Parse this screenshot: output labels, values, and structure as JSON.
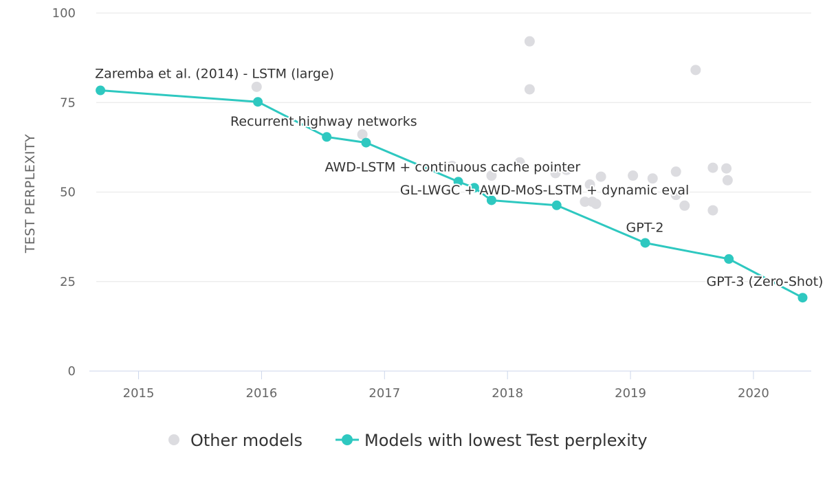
{
  "chart_data": {
    "type": "scatter",
    "xlabel": "",
    "ylabel": "TEST PERPLEXITY",
    "xlim": [
      2014.6,
      2020.47
    ],
    "ylim": [
      0,
      100
    ],
    "x_ticks": [
      2015,
      2016,
      2017,
      2018,
      2019,
      2020
    ],
    "y_ticks": [
      0,
      25,
      50,
      75,
      100
    ],
    "grid": "horizontal",
    "legend_position": "bottom",
    "colors": {
      "best": "#2ec8c0",
      "other": "#dcdce0"
    },
    "series": [
      {
        "name": "Other models",
        "kind": "scatter",
        "points": [
          [
            2015.96,
            79.4
          ],
          [
            2016.82,
            66.1
          ],
          [
            2017.55,
            57.3
          ],
          [
            2017.87,
            54.6
          ],
          [
            2018.1,
            58.3
          ],
          [
            2018.18,
            92.1
          ],
          [
            2018.18,
            78.7
          ],
          [
            2018.39,
            55.3
          ],
          [
            2018.48,
            56.2
          ],
          [
            2018.63,
            47.3
          ],
          [
            2018.67,
            52.1
          ],
          [
            2018.69,
            47.3
          ],
          [
            2018.72,
            46.7
          ],
          [
            2018.76,
            54.3
          ],
          [
            2019.02,
            54.6
          ],
          [
            2019.18,
            53.8
          ],
          [
            2019.37,
            49.2
          ],
          [
            2019.37,
            55.7
          ],
          [
            2019.44,
            46.2
          ],
          [
            2019.53,
            84.1
          ],
          [
            2019.67,
            56.8
          ],
          [
            2019.67,
            44.9
          ],
          [
            2019.78,
            56.6
          ],
          [
            2019.79,
            53.3
          ]
        ]
      },
      {
        "name": "Models with lowest Test perplexity",
        "kind": "line",
        "points": [
          [
            2014.69,
            78.4
          ],
          [
            2015.97,
            75.2
          ],
          [
            2016.53,
            65.4
          ],
          [
            2016.85,
            63.8
          ],
          [
            2017.6,
            52.9
          ],
          [
            2017.73,
            51.2
          ],
          [
            2017.87,
            47.7
          ],
          [
            2018.4,
            46.3
          ],
          [
            2019.12,
            35.8
          ],
          [
            2019.8,
            31.3
          ],
          [
            2020.4,
            20.5
          ]
        ]
      }
    ],
    "annotations": [
      {
        "text": "Zaremba et al. (2014) - LSTM (large)",
        "x": 2014.69,
        "y": 78.4,
        "anchor": "start",
        "dx": -8,
        "dy": -18
      },
      {
        "text": "Recurrent highway networks",
        "x": 2015.97,
        "y": 75.2,
        "anchor": "start",
        "dx": -40,
        "dy": 35
      },
      {
        "text": "AWD-LSTM + continuous cache pointer",
        "x": 2016.85,
        "y": 63.8,
        "anchor": "start",
        "dx": -60,
        "dy": 42
      },
      {
        "text": "GL-LWGC + AWD-MoS-LSTM + dynamic eval",
        "x": 2017.73,
        "y": 51.2,
        "anchor": "start",
        "dx": -108,
        "dy": 10
      },
      {
        "text": "GPT-2",
        "x": 2019.12,
        "y": 35.8,
        "anchor": "start",
        "dx": -28,
        "dy": -16
      },
      {
        "text": "GPT-3 (Zero-Shot)",
        "x": 2020.4,
        "y": 20.5,
        "anchor": "end",
        "dx": 30,
        "dy": -17
      }
    ]
  }
}
